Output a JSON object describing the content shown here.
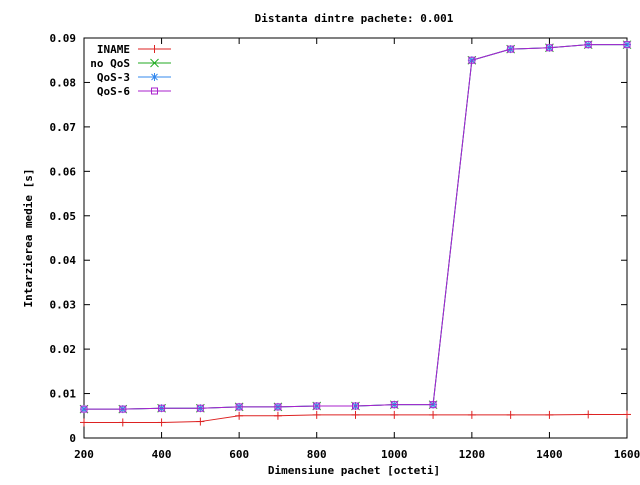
{
  "chart_data": {
    "type": "line",
    "title": "Distanta dintre pachete: 0.001",
    "xlabel": "Dimensiune pachet [octeti]",
    "ylabel": "Intarzierea medie [s]",
    "xlim": [
      200,
      1600
    ],
    "ylim": [
      0,
      0.09
    ],
    "x_ticks": [
      200,
      400,
      600,
      800,
      1000,
      1200,
      1400,
      1600
    ],
    "y_ticks": [
      0,
      0.01,
      0.02,
      0.03,
      0.04,
      0.05,
      0.06,
      0.07,
      0.08,
      0.09
    ],
    "x_tick_labels": [
      "200",
      "400",
      "600",
      "800",
      "1000",
      "1200",
      "1400",
      "1600"
    ],
    "y_tick_labels": [
      "0",
      "0.01",
      "0.02",
      "0.03",
      "0.04",
      "0.05",
      "0.06",
      "0.07",
      "0.08",
      "0.09"
    ],
    "grid": false,
    "legend_position": "top-left",
    "x": [
      200,
      300,
      400,
      500,
      600,
      700,
      800,
      900,
      1000,
      1100,
      1200,
      1300,
      1400,
      1500,
      1600
    ],
    "series": [
      {
        "name": "INAME",
        "color": "#dd2222",
        "marker": "plus",
        "values": [
          0.0035,
          0.0035,
          0.0035,
          0.0037,
          0.005,
          0.005,
          0.0052,
          0.0052,
          0.0052,
          0.0052,
          0.0052,
          0.0052,
          0.0052,
          0.0053,
          0.0053
        ]
      },
      {
        "name": "no QoS",
        "color": "#22aa22",
        "marker": "cross",
        "values": [
          0.0065,
          0.0065,
          0.0067,
          0.0067,
          0.007,
          0.007,
          0.0072,
          0.0072,
          0.0075,
          0.0075,
          0.085,
          0.0875,
          0.0878,
          0.0885,
          0.0885
        ]
      },
      {
        "name": "QoS-3",
        "color": "#3388ee",
        "marker": "star",
        "values": [
          0.0065,
          0.0065,
          0.0067,
          0.0067,
          0.007,
          0.007,
          0.0072,
          0.0072,
          0.0075,
          0.0075,
          0.085,
          0.0875,
          0.0878,
          0.0885,
          0.0885
        ]
      },
      {
        "name": "QoS-6",
        "color": "#aa22cc",
        "marker": "square",
        "values": [
          0.0065,
          0.0065,
          0.0067,
          0.0067,
          0.007,
          0.007,
          0.0072,
          0.0072,
          0.0075,
          0.0075,
          0.085,
          0.0875,
          0.0878,
          0.0885,
          0.0885
        ]
      }
    ]
  }
}
